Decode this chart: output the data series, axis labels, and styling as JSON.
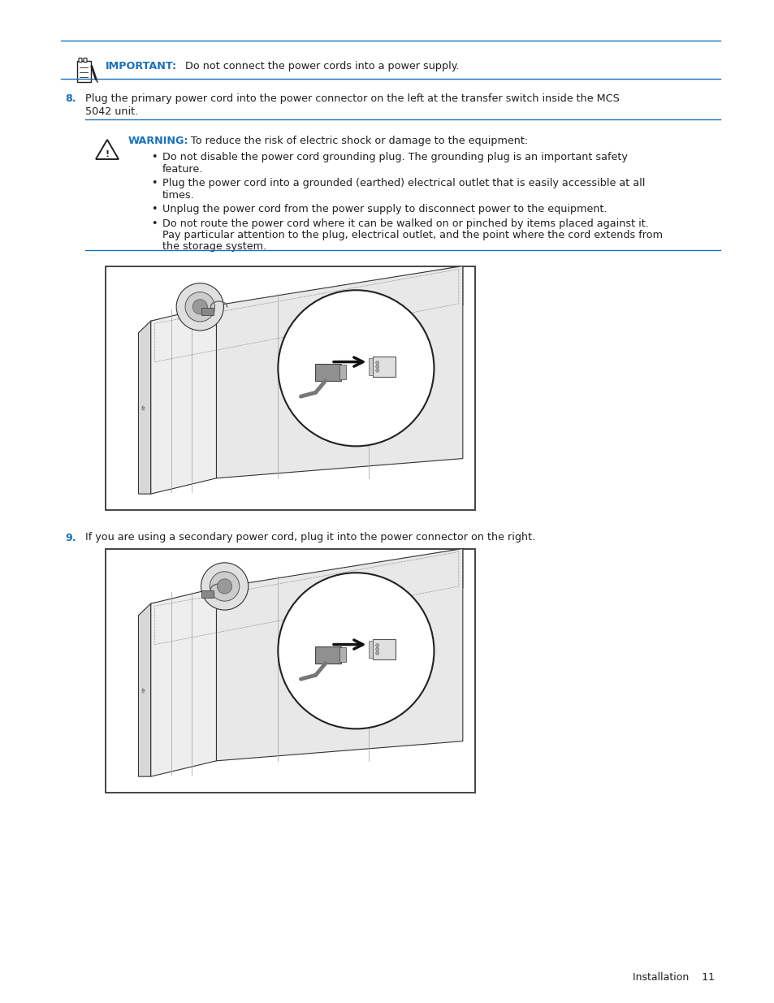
{
  "page_bg": "#ffffff",
  "blue_color": "#1a72bb",
  "text_color": "#231f20",
  "line_color": "#1a72bb",
  "footer_text": "Installation    11",
  "important_text": "IMPORTANT:",
  "important_body": "Do not connect the power cords into a power supply.",
  "step8_num": "8.",
  "step8_line1": "Plug the primary power cord into the power connector on the left at the transfer switch inside the MCS",
  "step8_line2": "5042 unit.",
  "warning_label": "WARNING:",
  "warning_intro": "To reduce the risk of electric shock or damage to the equipment:",
  "bullet1_line1": "Do not disable the power cord grounding plug. The grounding plug is an important safety",
  "bullet1_line2": "feature.",
  "bullet2_line1": "Plug the power cord into a grounded (earthed) electrical outlet that is easily accessible at all",
  "bullet2_line2": "times.",
  "bullet3": "Unplug the power cord from the power supply to disconnect power to the equipment.",
  "bullet4_line1": "Do not route the power cord where it can be walked on or pinched by items placed against it.",
  "bullet4_line2": "Pay particular attention to the plug, electrical outlet, and the point where the cord extends from",
  "bullet4_line3": "the storage system.",
  "step9_num": "9.",
  "step9_text": "If you are using a secondary power cord, plug it into the power connector on the right."
}
